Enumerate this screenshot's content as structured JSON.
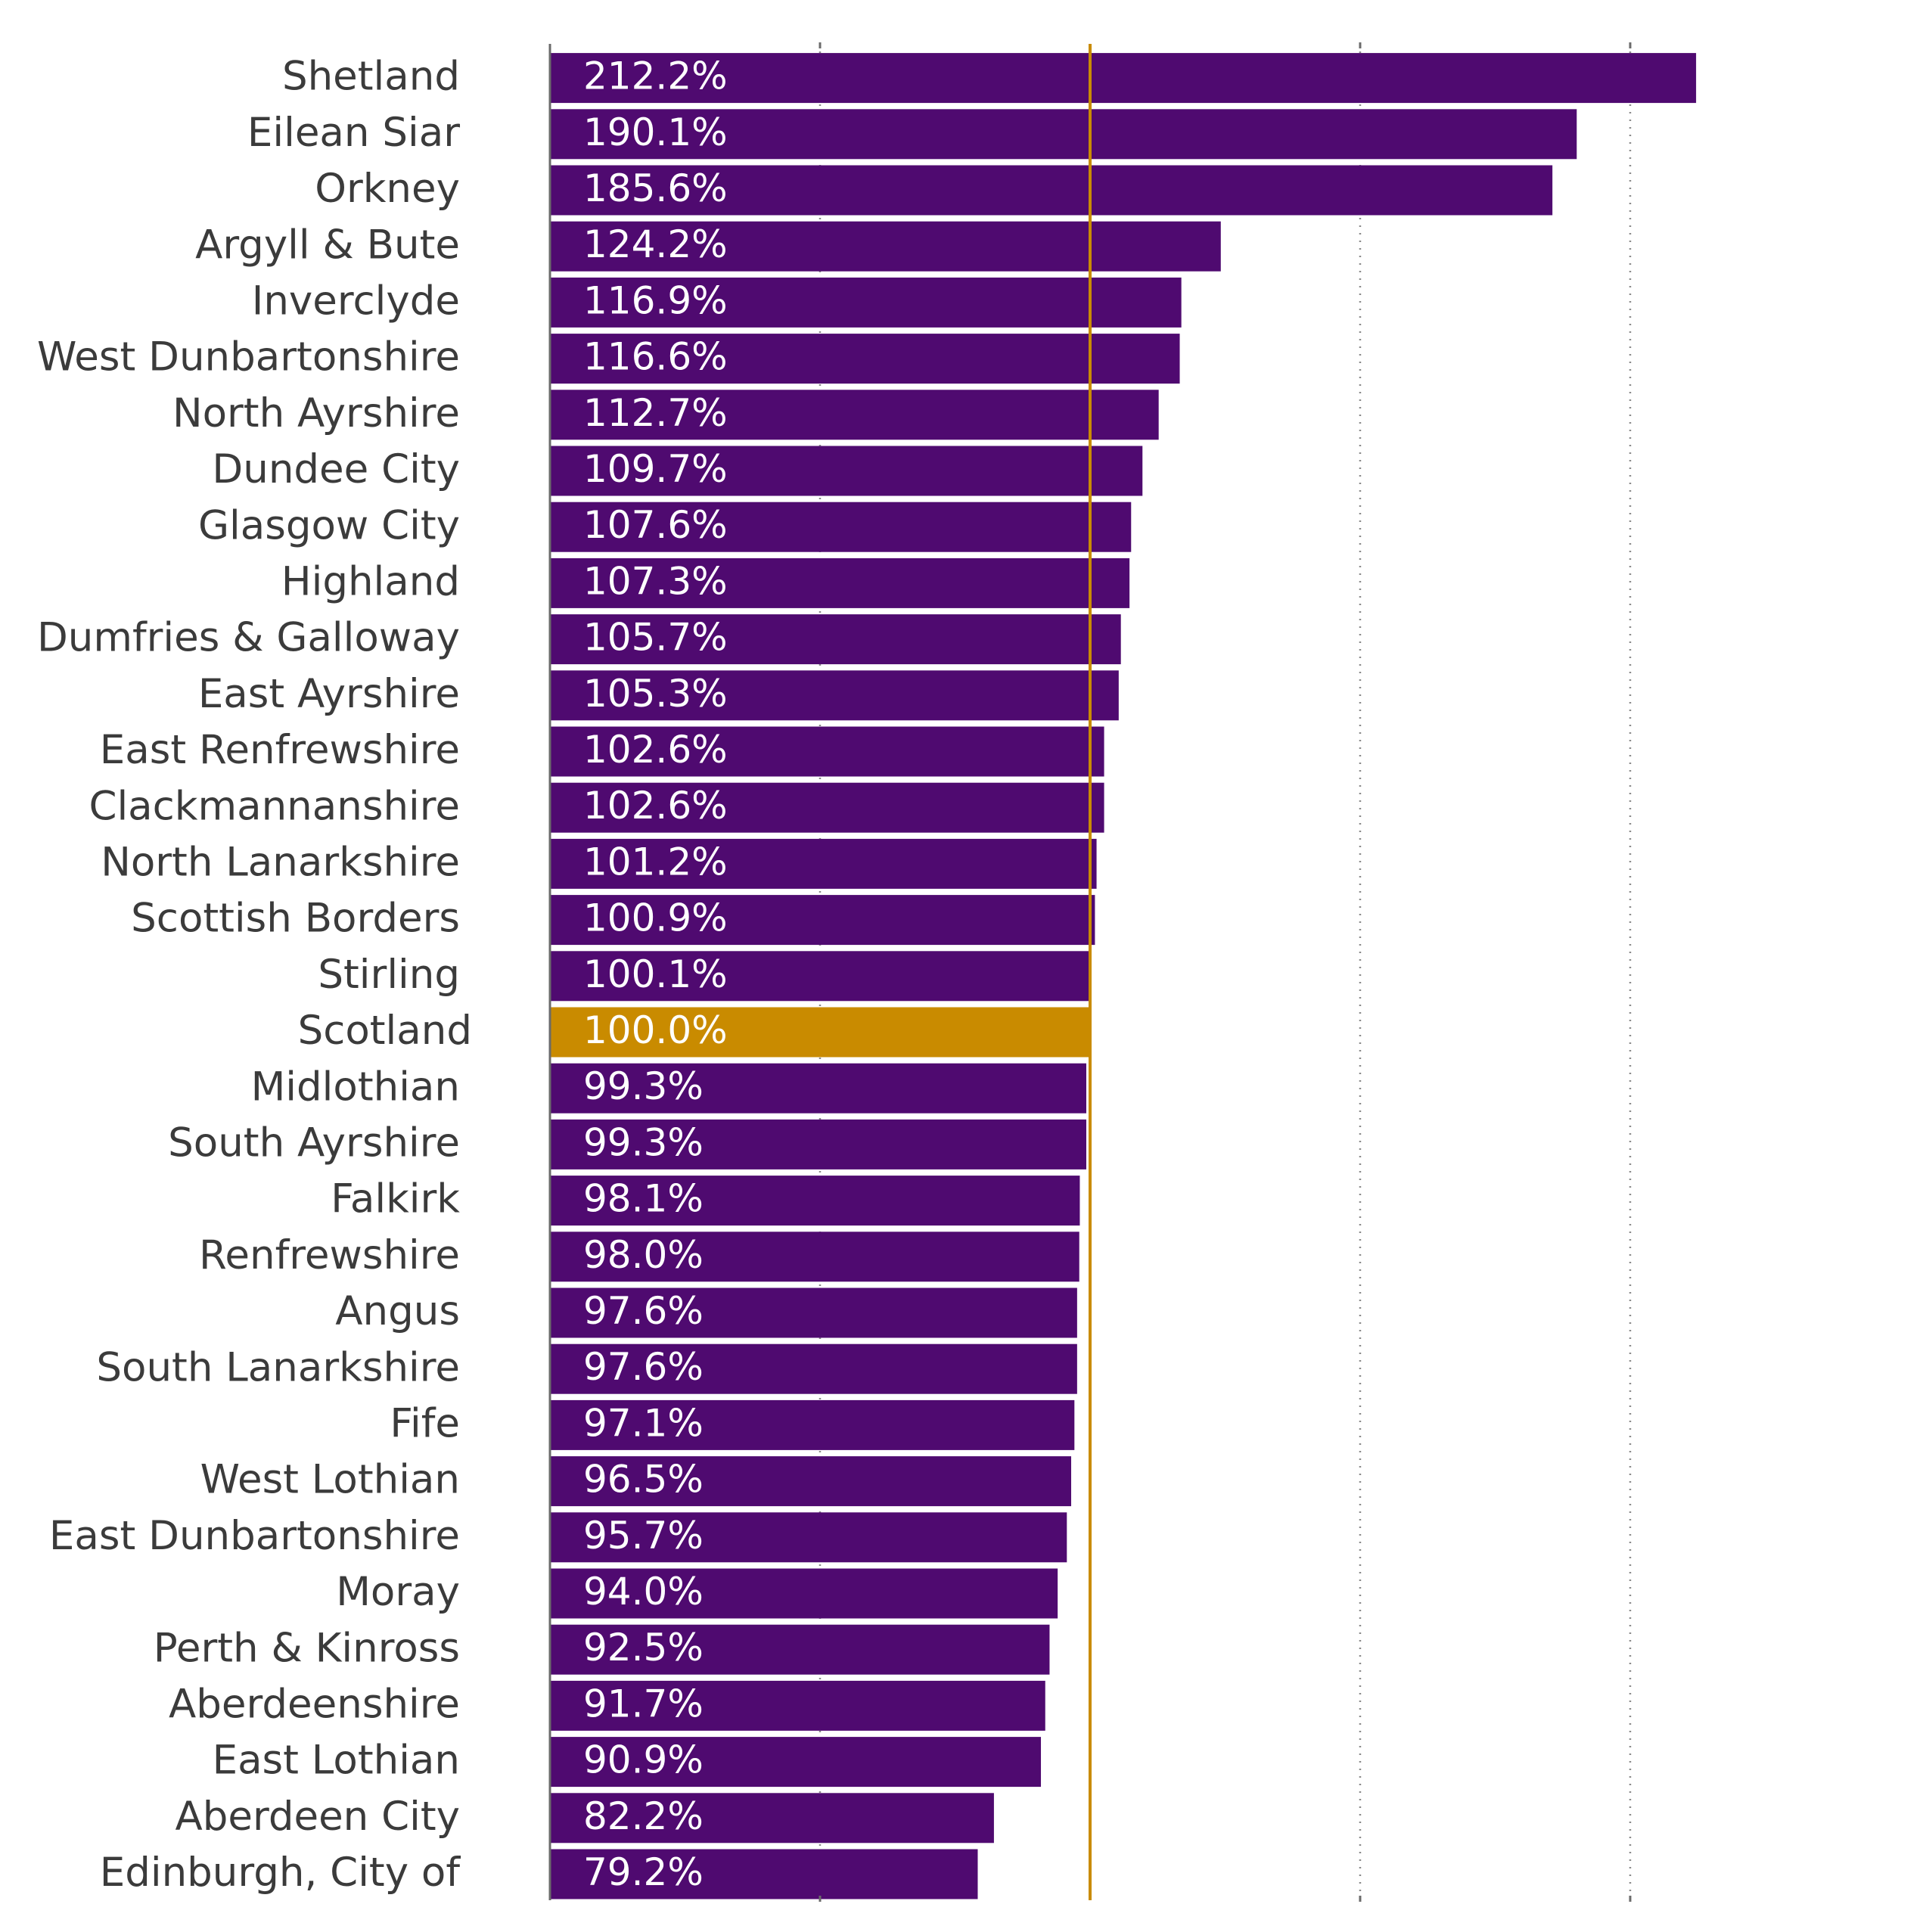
{
  "colors": {
    "bar": "#4f0a70",
    "highlight_bar": "#c98b00",
    "reference_line": "#c98b00",
    "value_label": "#ffffff",
    "category_label": "#3b3b3b",
    "gridline": "#8a8a8a",
    "axis": "#6b6b6b"
  },
  "chart_data": {
    "type": "bar",
    "orientation": "horizontal",
    "title": "",
    "xlabel": "",
    "ylabel": "",
    "xlim": [
      0,
      250
    ],
    "gridlines": "vertical-dotted",
    "reference_line": 100,
    "highlight_category": "Scotland",
    "categories": [
      "Shetland",
      "Eilean Siar",
      "Orkney",
      "Argyll & Bute",
      "Inverclyde",
      "West Dunbartonshire",
      "North Ayrshire",
      "Dundee City",
      "Glasgow City",
      "Highland",
      "Dumfries & Galloway",
      "East Ayrshire",
      "East Renfrewshire",
      "Clackmannanshire",
      "North Lanarkshire",
      "Scottish Borders",
      "Stirling",
      "Scotland",
      "Midlothian",
      "South Ayrshire",
      "Falkirk",
      "Renfrewshire",
      "Angus",
      "South Lanarkshire",
      "Fife",
      "West Lothian",
      "East Dunbartonshire",
      "Moray",
      "Perth & Kinross",
      "Aberdeenshire",
      "East Lothian",
      "Aberdeen City",
      "Edinburgh, City of"
    ],
    "values": [
      212.2,
      190.1,
      185.6,
      124.2,
      116.9,
      116.6,
      112.7,
      109.7,
      107.6,
      107.3,
      105.7,
      105.3,
      102.6,
      102.6,
      101.2,
      100.9,
      100.1,
      100.0,
      99.3,
      99.3,
      98.1,
      98.0,
      97.6,
      97.6,
      97.1,
      96.5,
      95.7,
      94.0,
      92.5,
      91.7,
      90.9,
      82.2,
      79.2
    ],
    "value_labels": [
      "212.2%",
      "190.1%",
      "185.6%",
      "124.2%",
      "116.9%",
      "116.6%",
      "112.7%",
      "109.7%",
      "107.6%",
      "107.3%",
      "105.7%",
      "105.3%",
      "102.6%",
      "102.6%",
      "101.2%",
      "100.9%",
      "100.1%",
      "100.0%",
      "99.3%",
      "99.3%",
      "98.1%",
      "98.0%",
      "97.6%",
      "97.6%",
      "97.1%",
      "96.5%",
      "95.7%",
      "94.0%",
      "92.5%",
      "91.7%",
      "90.9%",
      "82.2%",
      "79.2%"
    ]
  }
}
